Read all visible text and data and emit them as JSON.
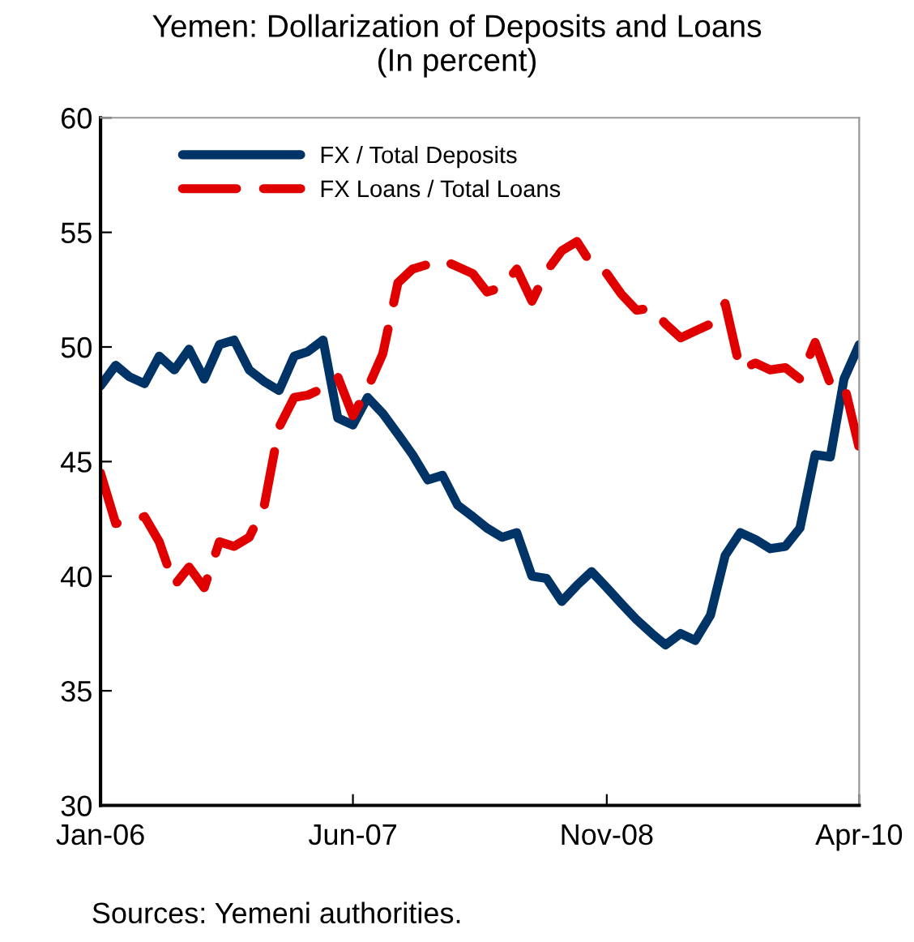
{
  "chart_data": {
    "type": "line",
    "title": "Yemen: Dollarization of Deposits and Loans\n(In percent)",
    "x": [
      "2006-01",
      "2006-02",
      "2006-03",
      "2006-04",
      "2006-05",
      "2006-06",
      "2006-07",
      "2006-08",
      "2006-09",
      "2006-10",
      "2006-11",
      "2006-12",
      "2007-01",
      "2007-02",
      "2007-03",
      "2007-04",
      "2007-05",
      "2007-06",
      "2007-07",
      "2007-08",
      "2007-09",
      "2007-10",
      "2007-11",
      "2007-12",
      "2008-01",
      "2008-02",
      "2008-03",
      "2008-04",
      "2008-05",
      "2008-06",
      "2008-07",
      "2008-08",
      "2008-09",
      "2008-10",
      "2008-11",
      "2008-12",
      "2009-01",
      "2009-02",
      "2009-03",
      "2009-04",
      "2009-05",
      "2009-06",
      "2009-07",
      "2009-08",
      "2009-09",
      "2009-10",
      "2009-11",
      "2009-12",
      "2010-01",
      "2010-02",
      "2010-03",
      "2010-04"
    ],
    "series": [
      {
        "name": "FX / Total Deposits",
        "color": "#003366",
        "line_style": "solid",
        "values": [
          48.3,
          49.2,
          48.7,
          48.4,
          49.6,
          49.0,
          49.9,
          48.6,
          50.1,
          50.3,
          49.0,
          48.5,
          48.1,
          49.6,
          49.8,
          50.3,
          46.9,
          46.6,
          47.8,
          47.1,
          46.2,
          45.3,
          44.2,
          44.4,
          43.1,
          42.6,
          42.1,
          41.7,
          41.9,
          40.0,
          39.9,
          38.9,
          39.6,
          40.2,
          39.5,
          38.8,
          38.1,
          37.5,
          37.0,
          37.5,
          37.2,
          38.3,
          40.9,
          41.9,
          41.6,
          41.2,
          41.3,
          42.1,
          45.3,
          45.2,
          48.6,
          50.1
        ]
      },
      {
        "name": "FX Loans / Total Loans",
        "color": "#e00000",
        "line_style": "dashed",
        "values": [
          44.5,
          42.3,
          42.4,
          42.6,
          41.5,
          39.6,
          40.4,
          39.5,
          41.5,
          41.3,
          41.7,
          43.0,
          46.5,
          47.8,
          47.9,
          48.2,
          48.7,
          47.0,
          48.2,
          49.7,
          52.8,
          53.4,
          53.6,
          53.8,
          53.5,
          53.2,
          52.4,
          52.6,
          53.4,
          52.0,
          53.3,
          54.2,
          54.6,
          53.6,
          53.2,
          52.3,
          51.6,
          51.7,
          51.0,
          50.4,
          50.7,
          51.0,
          51.9,
          49.0,
          49.3,
          49.0,
          49.1,
          48.6,
          50.2,
          48.4,
          48.4,
          45.6
        ]
      }
    ],
    "xlim": [
      "2006-01",
      "2010-04"
    ],
    "xticks": [
      {
        "value": "2006-01",
        "label": "Jan-06"
      },
      {
        "value": "2007-06",
        "label": "Jun-07"
      },
      {
        "value": "2008-11",
        "label": "Nov-08"
      },
      {
        "value": "2010-04",
        "label": "Apr-10"
      }
    ],
    "ylim": [
      30,
      60
    ],
    "yticks": [
      30,
      35,
      40,
      45,
      50,
      55,
      60
    ],
    "grid": false,
    "legend": "top left",
    "annotations": [
      "Sources: Yemeni authorities."
    ]
  }
}
